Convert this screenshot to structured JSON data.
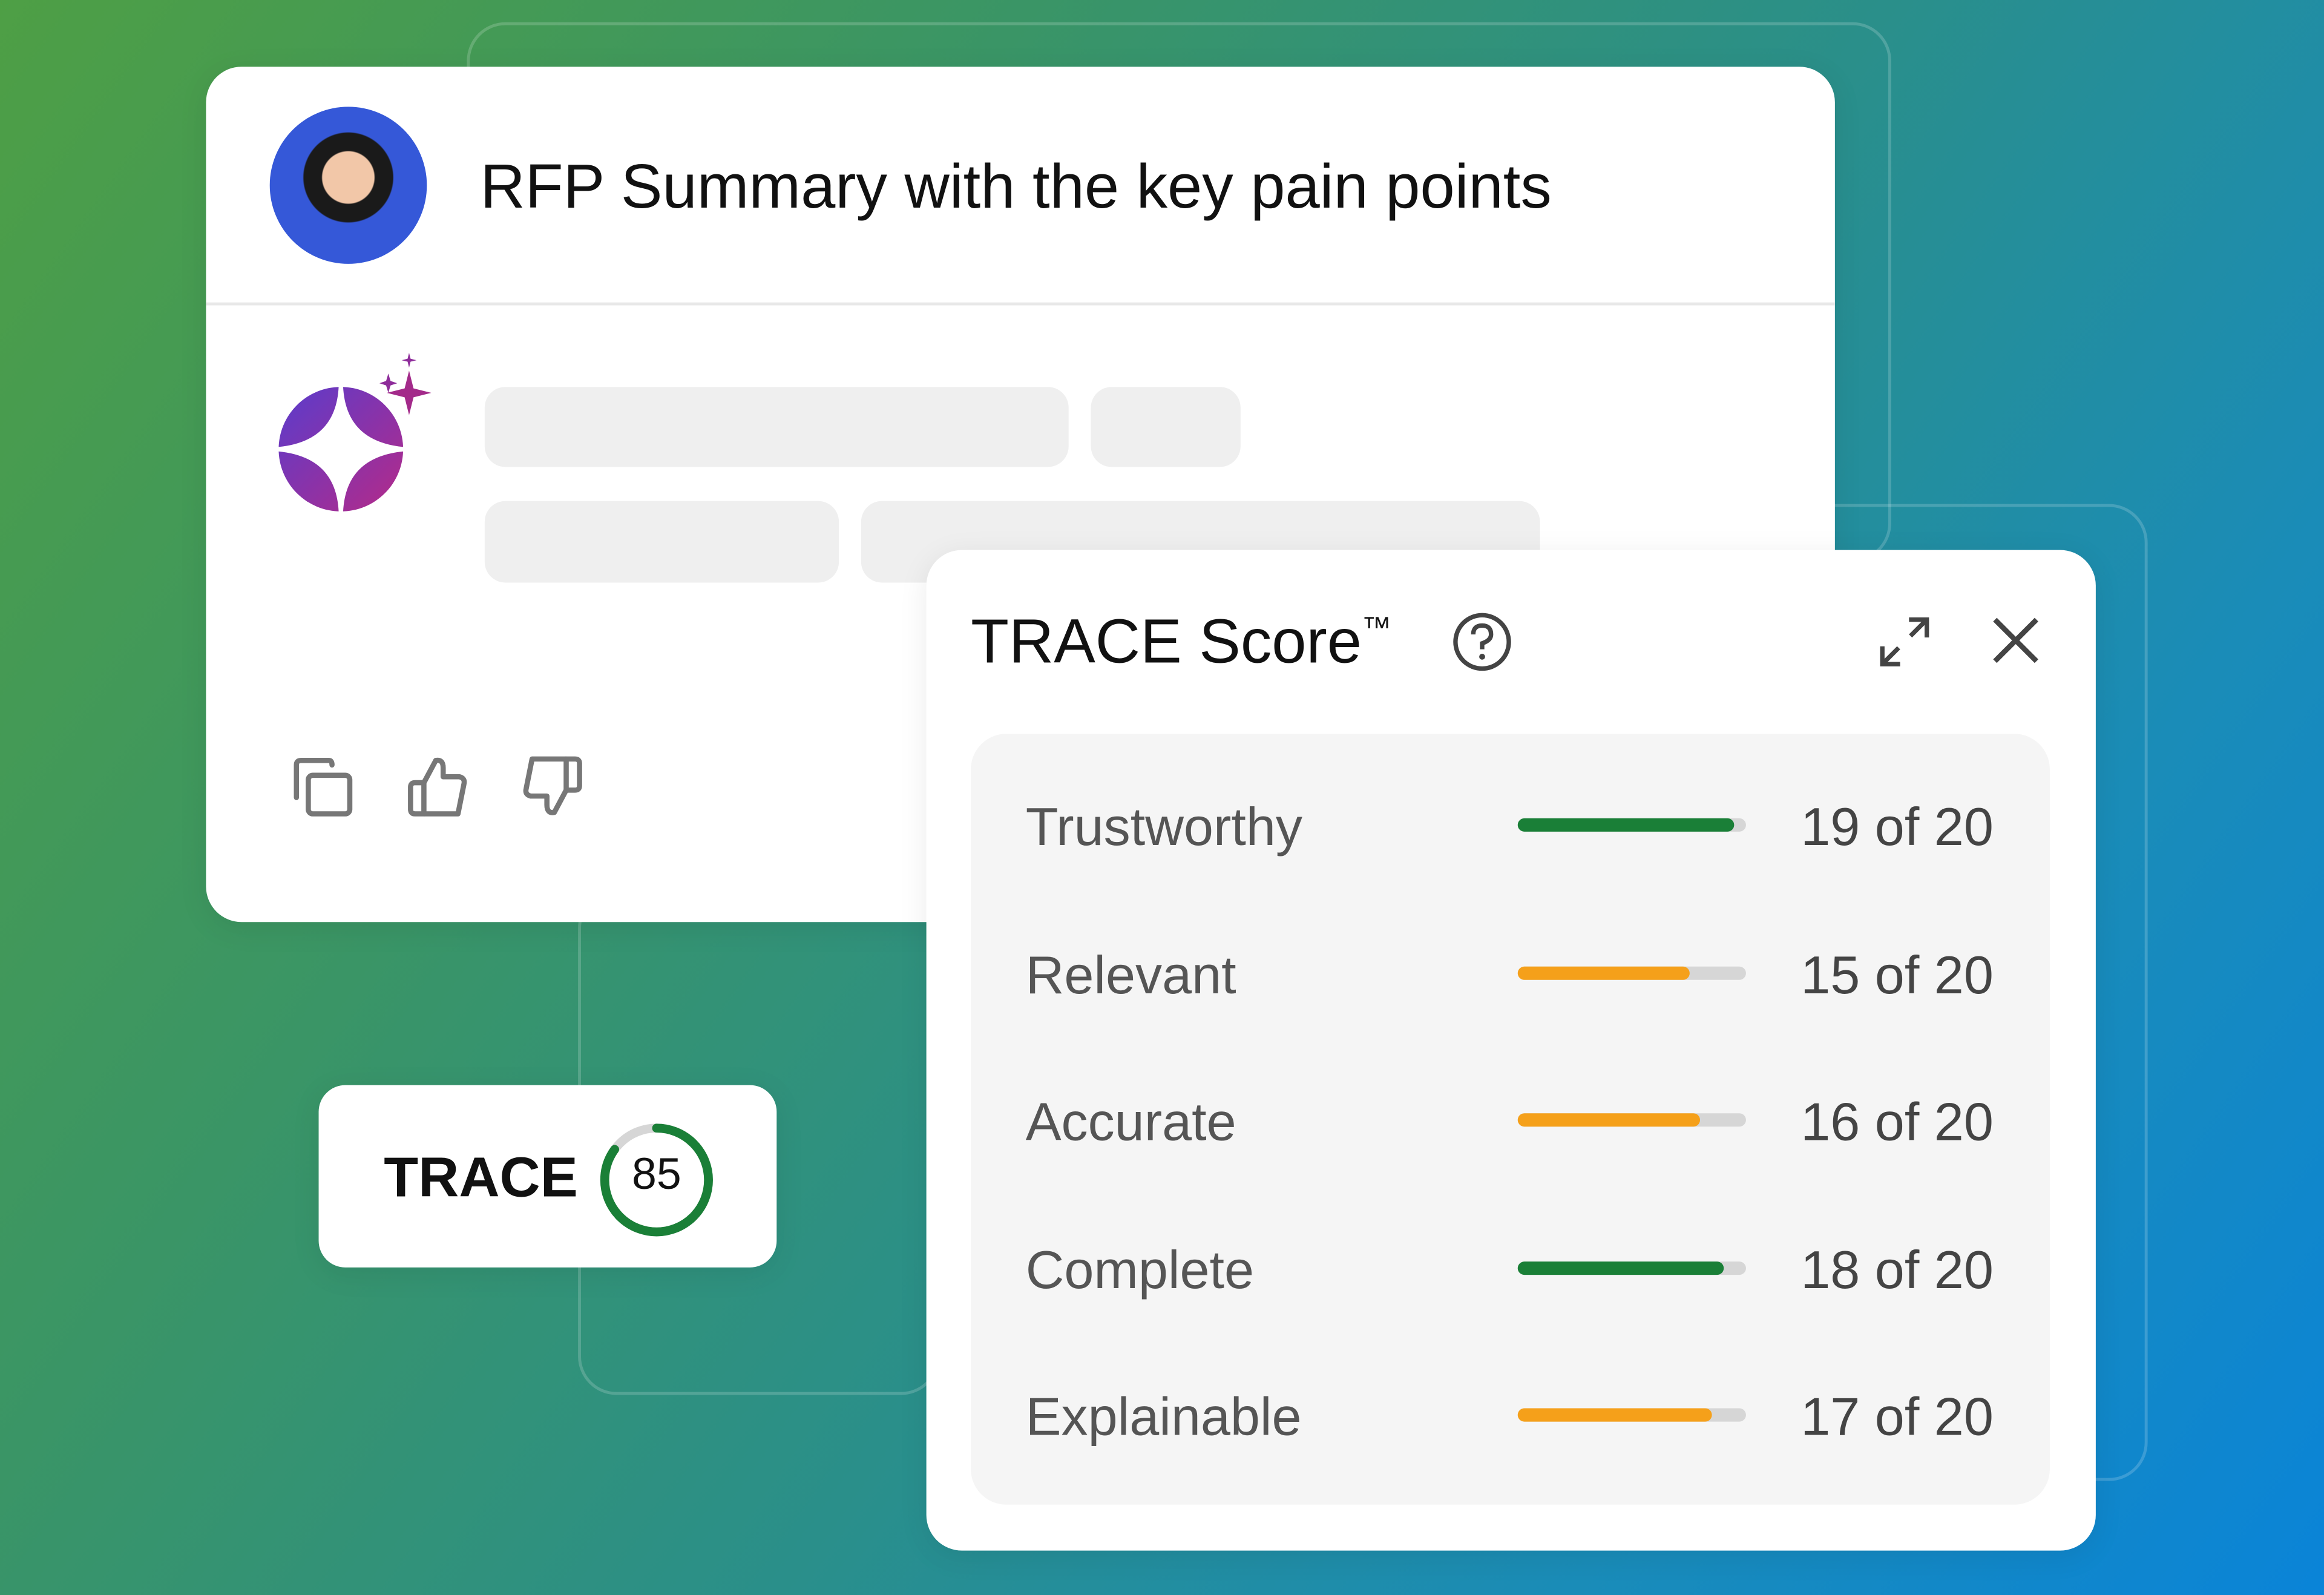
{
  "prompt": {
    "title": "RFP Summary with the key pain points"
  },
  "actions": [
    {
      "icon": "copy-icon"
    },
    {
      "icon": "thumbs-up-icon"
    },
    {
      "icon": "thumbs-down-icon"
    }
  ],
  "badge": {
    "label": "TRACE",
    "score": "85",
    "score_value": 85,
    "max": 100,
    "color": "#1a7f37"
  },
  "panel": {
    "title": "TRACE Score",
    "trademark": "™",
    "rows": [
      {
        "label": "Trustworthy",
        "value": "19 of 20",
        "score": 19,
        "max": 20,
        "color": "#1a7f37"
      },
      {
        "label": "Relevant",
        "value": "15 of 20",
        "score": 15,
        "max": 20,
        "color": "#f5a01a"
      },
      {
        "label": "Accurate",
        "value": "16 of 20",
        "score": 16,
        "max": 20,
        "color": "#f5a01a"
      },
      {
        "label": "Complete",
        "value": "18 of 20",
        "score": 18,
        "max": 20,
        "color": "#1a7f37"
      },
      {
        "label": "Explainable",
        "value": "17 of 20",
        "score": 17,
        "max": 20,
        "color": "#f5a01a"
      }
    ]
  },
  "colors": {
    "track": "#d6d6d6",
    "skeleton": "#efefef"
  }
}
